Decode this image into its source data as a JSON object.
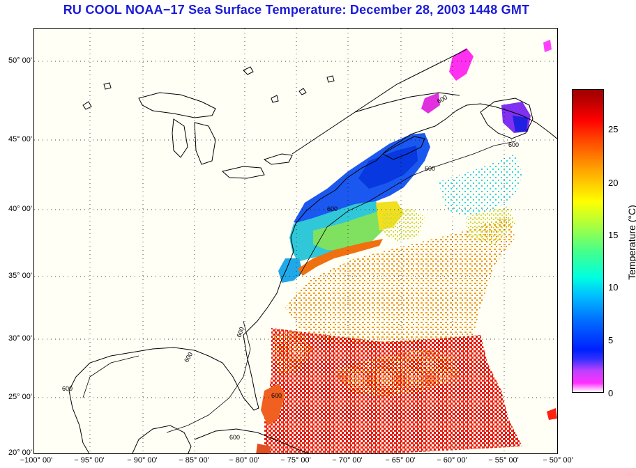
{
  "title": "RU COOL  NOAA−17  Sea Surface Temperature:  December 28, 2003 1448 GMT",
  "lat_labels": [
    "50° 00'",
    "45° 00'",
    "40° 00'",
    "35° 00'",
    "30° 00'",
    "25° 00'",
    "20° 00'"
  ],
  "lon_labels": [
    "−100° 00'",
    "− 95° 00'",
    "− 90° 00'",
    "− 85° 00'",
    "− 80° 00'",
    "− 75° 00'",
    "− 70° 00'",
    "− 65° 00'",
    "− 60° 00'",
    "− 55° 00'",
    "− 50° 00'"
  ],
  "colorbar": {
    "title": "Temperature (°C)",
    "ticks": [
      "25",
      "20",
      "15",
      "10",
      "5",
      "0"
    ]
  },
  "contour_label": "600",
  "colors": {
    "title": "#1a1ad8",
    "land_bg": "#fffff6"
  }
}
